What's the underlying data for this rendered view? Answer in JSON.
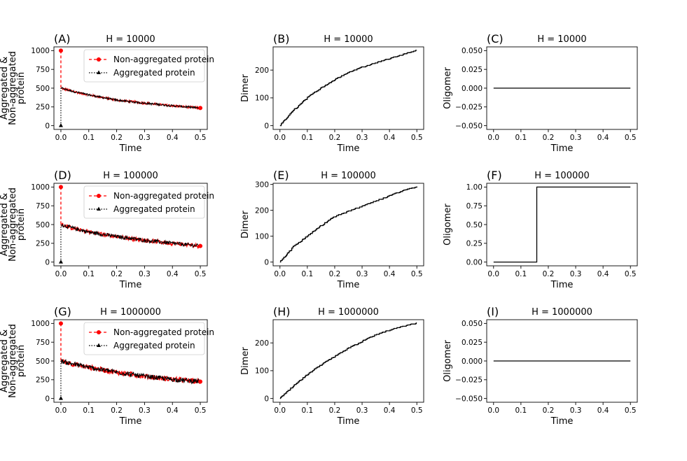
{
  "figure": {
    "background": "#ffffff",
    "line_color": "#000000",
    "red": "#ff0000"
  },
  "chart_data": [
    {
      "id": "A",
      "panel_label": "(A)",
      "title": "H = 10000",
      "type": "line",
      "kind": "protein",
      "xlabel": "Time",
      "ylabel_lines": [
        "Aggregated &",
        "Non-aggregated",
        "protein"
      ],
      "xlim": [
        -0.025,
        0.525
      ],
      "ylim": [
        -50,
        1050
      ],
      "xticks": [
        0.0,
        0.1,
        0.2,
        0.3,
        0.4,
        0.5
      ],
      "xtick_labels": [
        "0.0",
        "0.1",
        "0.2",
        "0.3",
        "0.4",
        "0.5"
      ],
      "yticks": [
        0,
        250,
        500,
        750,
        1000
      ],
      "ytick_labels": [
        "0",
        "250",
        "500",
        "750",
        "1000"
      ],
      "legend": {
        "position": "top-right",
        "entries": [
          "Non-aggregated protein",
          "Aggregated protein"
        ]
      },
      "series": [
        {
          "name": "Non-aggregated protein",
          "style": "red dashed, circle markers",
          "x": [
            0,
            0,
            0.05,
            0.1,
            0.2,
            0.3,
            0.4,
            0.5
          ],
          "y": [
            1000,
            500,
            450,
            410,
            340,
            300,
            265,
            235
          ]
        },
        {
          "name": "Aggregated protein",
          "style": "black dotted, triangle markers",
          "x": [
            0,
            0,
            0.05,
            0.1,
            0.2,
            0.3,
            0.4,
            0.5
          ],
          "y": [
            0,
            500,
            450,
            410,
            340,
            300,
            265,
            235
          ]
        }
      ],
      "noise": 30
    },
    {
      "id": "B",
      "panel_label": "(B)",
      "title": "H = 10000",
      "type": "line",
      "kind": "step",
      "xlabel": "Time",
      "ylabel_lines": [
        "Dimer"
      ],
      "xlim": [
        -0.025,
        0.525
      ],
      "ylim": [
        -13.5,
        283.5
      ],
      "xticks": [
        0.0,
        0.1,
        0.2,
        0.3,
        0.4,
        0.5
      ],
      "xtick_labels": [
        "0.0",
        "0.1",
        "0.2",
        "0.3",
        "0.4",
        "0.5"
      ],
      "yticks": [
        0,
        100,
        200
      ],
      "ytick_labels": [
        "0",
        "100",
        "200"
      ],
      "series": [
        {
          "name": "Dimer",
          "x": [
            0,
            0.05,
            0.1,
            0.15,
            0.2,
            0.25,
            0.3,
            0.35,
            0.4,
            0.45,
            0.5
          ],
          "y": [
            0,
            55,
            100,
            135,
            165,
            190,
            210,
            225,
            240,
            255,
            270
          ]
        }
      ]
    },
    {
      "id": "C",
      "panel_label": "(C)",
      "title": "H = 10000",
      "type": "line",
      "kind": "step",
      "xlabel": "Time",
      "ylabel_lines": [
        "Oligomer"
      ],
      "xlim": [
        -0.025,
        0.525
      ],
      "ylim": [
        -0.055,
        0.055
      ],
      "xticks": [
        0.0,
        0.1,
        0.2,
        0.3,
        0.4,
        0.5
      ],
      "xtick_labels": [
        "0.0",
        "0.1",
        "0.2",
        "0.3",
        "0.4",
        "0.5"
      ],
      "yticks": [
        -0.05,
        -0.025,
        0,
        0.025,
        0.05
      ],
      "ytick_labels": [
        "−0.050",
        "−0.025",
        "0.000",
        "0.025",
        "0.050"
      ],
      "series": [
        {
          "name": "Oligomer",
          "x": [
            0,
            0.5
          ],
          "y": [
            0,
            0
          ]
        }
      ]
    },
    {
      "id": "D",
      "panel_label": "(D)",
      "title": "H = 100000",
      "type": "line",
      "kind": "protein",
      "xlabel": "Time",
      "ylabel_lines": [
        "Aggregated &",
        "Non-aggregated",
        "protein"
      ],
      "xlim": [
        -0.025,
        0.525
      ],
      "ylim": [
        -50,
        1050
      ],
      "xticks": [
        0.0,
        0.1,
        0.2,
        0.3,
        0.4,
        0.5
      ],
      "xtick_labels": [
        "0.0",
        "0.1",
        "0.2",
        "0.3",
        "0.4",
        "0.5"
      ],
      "yticks": [
        0,
        250,
        500,
        750,
        1000
      ],
      "ytick_labels": [
        "0",
        "250",
        "500",
        "750",
        "1000"
      ],
      "legend": {
        "position": "top-right",
        "entries": [
          "Non-aggregated protein",
          "Aggregated protein"
        ]
      },
      "series": [
        {
          "name": "Non-aggregated protein",
          "style": "red dashed, circle markers",
          "x": [
            0,
            0,
            0.05,
            0.1,
            0.2,
            0.3,
            0.4,
            0.5
          ],
          "y": [
            1000,
            500,
            445,
            400,
            340,
            290,
            250,
            215
          ]
        },
        {
          "name": "Aggregated protein",
          "style": "black dotted, triangle markers",
          "x": [
            0,
            0,
            0.05,
            0.1,
            0.2,
            0.3,
            0.4,
            0.5
          ],
          "y": [
            0,
            500,
            445,
            400,
            340,
            290,
            250,
            215
          ]
        }
      ],
      "noise": 55
    },
    {
      "id": "E",
      "panel_label": "(E)",
      "title": "H = 100000",
      "type": "line",
      "kind": "step",
      "xlabel": "Time",
      "ylabel_lines": [
        "Dimer"
      ],
      "xlim": [
        -0.025,
        0.525
      ],
      "ylim": [
        -14.5,
        304.5
      ],
      "xticks": [
        0.0,
        0.1,
        0.2,
        0.3,
        0.4,
        0.5
      ],
      "xtick_labels": [
        "0.0",
        "0.1",
        "0.2",
        "0.3",
        "0.4",
        "0.5"
      ],
      "yticks": [
        0,
        100,
        200,
        300
      ],
      "ytick_labels": [
        "0",
        "100",
        "200",
        "300"
      ],
      "series": [
        {
          "name": "Dimer",
          "x": [
            0,
            0.05,
            0.1,
            0.15,
            0.2,
            0.25,
            0.3,
            0.35,
            0.4,
            0.45,
            0.5
          ],
          "y": [
            0,
            60,
            100,
            140,
            175,
            195,
            215,
            235,
            255,
            275,
            290
          ]
        }
      ]
    },
    {
      "id": "F",
      "panel_label": "(F)",
      "title": "H = 100000",
      "type": "line",
      "kind": "step",
      "xlabel": "Time",
      "ylabel_lines": [
        "Oligomer"
      ],
      "xlim": [
        -0.025,
        0.525
      ],
      "ylim": [
        -0.05,
        1.05
      ],
      "xticks": [
        0.0,
        0.1,
        0.2,
        0.3,
        0.4,
        0.5
      ],
      "xtick_labels": [
        "0.0",
        "0.1",
        "0.2",
        "0.3",
        "0.4",
        "0.5"
      ],
      "yticks": [
        0,
        0.25,
        0.5,
        0.75,
        1.0
      ],
      "ytick_labels": [
        "0.00",
        "0.25",
        "0.50",
        "0.75",
        "1.00"
      ],
      "series": [
        {
          "name": "Oligomer",
          "x": [
            0,
            0.158,
            0.158,
            0.5
          ],
          "y": [
            0,
            0,
            1,
            1
          ]
        }
      ]
    },
    {
      "id": "G",
      "panel_label": "(G)",
      "title": "H = 1000000",
      "type": "line",
      "kind": "protein",
      "xlabel": "Time",
      "ylabel_lines": [
        "Aggregated &",
        "Non-aggregated",
        "protein"
      ],
      "xlim": [
        -0.025,
        0.525
      ],
      "ylim": [
        -50,
        1050
      ],
      "xticks": [
        0.0,
        0.1,
        0.2,
        0.3,
        0.4,
        0.5
      ],
      "xtick_labels": [
        "0.0",
        "0.1",
        "0.2",
        "0.3",
        "0.4",
        "0.5"
      ],
      "yticks": [
        0,
        250,
        500,
        750,
        1000
      ],
      "ytick_labels": [
        "0",
        "250",
        "500",
        "750",
        "1000"
      ],
      "legend": {
        "position": "top-right",
        "entries": [
          "Non-aggregated protein",
          "Aggregated protein"
        ]
      },
      "series": [
        {
          "name": "Non-aggregated protein",
          "style": "red dashed, circle markers",
          "x": [
            0,
            0,
            0.05,
            0.1,
            0.2,
            0.3,
            0.4,
            0.5
          ],
          "y": [
            1000,
            500,
            455,
            415,
            350,
            295,
            255,
            225
          ]
        },
        {
          "name": "Aggregated protein",
          "style": "black dotted, triangle markers",
          "x": [
            0,
            0,
            0.05,
            0.1,
            0.2,
            0.3,
            0.4,
            0.5
          ],
          "y": [
            0,
            500,
            455,
            415,
            350,
            295,
            255,
            225
          ]
        }
      ],
      "noise": 70
    },
    {
      "id": "H",
      "panel_label": "(H)",
      "title": "H = 1000000",
      "type": "line",
      "kind": "step",
      "xlabel": "Time",
      "ylabel_lines": [
        "Dimer"
      ],
      "xlim": [
        -0.025,
        0.525
      ],
      "ylim": [
        -13.5,
        283.5
      ],
      "xticks": [
        0.0,
        0.1,
        0.2,
        0.3,
        0.4,
        0.5
      ],
      "xtick_labels": [
        "0.0",
        "0.1",
        "0.2",
        "0.3",
        "0.4",
        "0.5"
      ],
      "yticks": [
        0,
        100,
        200
      ],
      "ytick_labels": [
        "0",
        "100",
        "200"
      ],
      "series": [
        {
          "name": "Dimer",
          "x": [
            0,
            0.05,
            0.1,
            0.15,
            0.2,
            0.25,
            0.3,
            0.35,
            0.4,
            0.45,
            0.5
          ],
          "y": [
            0,
            45,
            85,
            120,
            150,
            180,
            205,
            228,
            245,
            258,
            270
          ]
        }
      ]
    },
    {
      "id": "I",
      "panel_label": "(I)",
      "title": "H = 1000000",
      "type": "line",
      "kind": "step",
      "xlabel": "Time",
      "ylabel_lines": [
        "Oligomer"
      ],
      "xlim": [
        -0.025,
        0.525
      ],
      "ylim": [
        -0.055,
        0.055
      ],
      "xticks": [
        0.0,
        0.1,
        0.2,
        0.3,
        0.4,
        0.5
      ],
      "xtick_labels": [
        "0.0",
        "0.1",
        "0.2",
        "0.3",
        "0.4",
        "0.5"
      ],
      "yticks": [
        -0.05,
        -0.025,
        0,
        0.025,
        0.05
      ],
      "ytick_labels": [
        "−0.050",
        "−0.025",
        "0.000",
        "0.025",
        "0.050"
      ],
      "series": [
        {
          "name": "Oligomer",
          "x": [
            0,
            0.5
          ],
          "y": [
            0,
            0
          ]
        }
      ]
    }
  ]
}
